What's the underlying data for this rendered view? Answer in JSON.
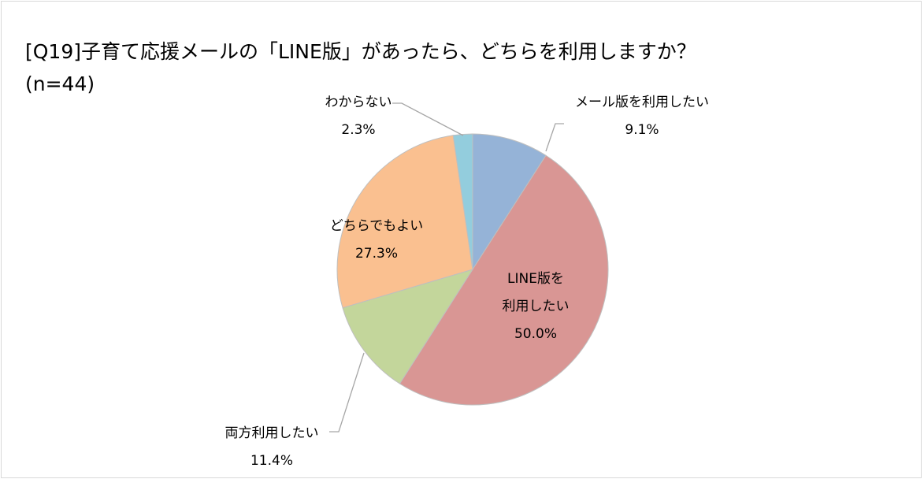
{
  "chart_data": {
    "type": "pie",
    "title": "[Q19]子育て応援メールの「LINE版」があったら、どちらを利用しますか？",
    "subtitle": "(n=44)",
    "categories": [
      "メール版を利用したい",
      "LINE版を\n利用したい",
      "両方利用したい",
      "どちらでもよい",
      "わからない"
    ],
    "values": [
      9.1,
      50.0,
      11.4,
      27.3,
      2.3
    ],
    "value_labels": [
      "9.1%",
      "50.0%",
      "11.4%",
      "27.3%",
      "2.3%"
    ],
    "colors": [
      "#95b3d7",
      "#d99694",
      "#c3d69b",
      "#fac090",
      "#93cddd"
    ]
  }
}
